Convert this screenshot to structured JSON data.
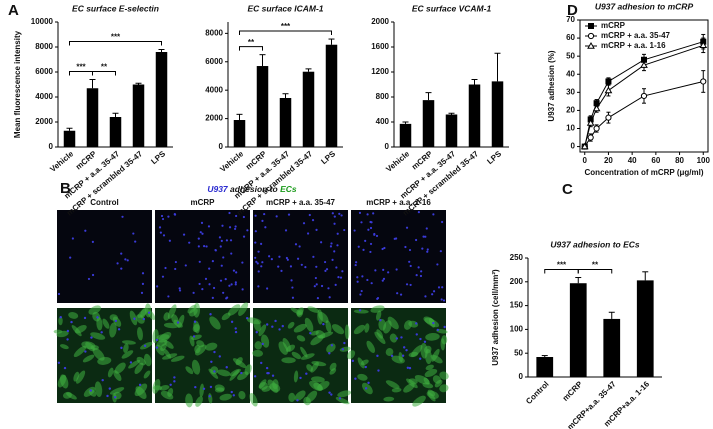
{
  "panel_labels": [
    "A",
    "B",
    "C",
    "D"
  ],
  "image_panel": {
    "title_parts": [
      "U937",
      "adhesion to",
      "ECs"
    ],
    "columns": [
      "Control",
      "mCRP",
      "mCRP + a.a. 35-47",
      "mCRP + a.a. 1-16"
    ]
  },
  "chart_data": [
    {
      "type": "bar",
      "title": "EC surface E-selectin",
      "y_label": "Mean fluorescence intensity",
      "categories": [
        "Vehicle",
        "mCRP",
        "mCRP + a.a. 35-47",
        "mCRP + scrambled 35-47",
        "LPS"
      ],
      "values": [
        1300,
        4700,
        2400,
        5000,
        7600
      ],
      "errors": [
        200,
        700,
        300,
        100,
        200
      ],
      "color": "#000000",
      "ylim": [
        0,
        10000
      ],
      "yticks": [
        0,
        2000,
        4000,
        6000,
        8000,
        10000
      ],
      "annotations": [
        {
          "text": "***",
          "pair": [
            0,
            1
          ]
        },
        {
          "text": "**",
          "pair": [
            1,
            2
          ]
        },
        {
          "text": "***",
          "pair": [
            0,
            4
          ]
        }
      ]
    },
    {
      "type": "bar",
      "title": "EC surface ICAM-1",
      "categories": [
        "Vehicle",
        "mCRP",
        "mCRP + a.a. 35-47",
        "mCRP + scrambled 35-47",
        "LPS"
      ],
      "values": [
        1900,
        5700,
        3450,
        5300,
        7200
      ],
      "errors": [
        400,
        800,
        300,
        200,
        400
      ],
      "color": "#000000",
      "ylim": [
        0,
        8800
      ],
      "yticks": [
        0,
        2000,
        4000,
        6000,
        8000
      ],
      "annotations": [
        {
          "text": "**",
          "pair": [
            0,
            1
          ]
        },
        {
          "text": "***",
          "pair": [
            0,
            4
          ]
        }
      ]
    },
    {
      "type": "bar",
      "title": "EC surface VCAM-1",
      "categories": [
        "Vehicle",
        "mCRP",
        "mCRP + a.a. 35-47",
        "mCRP + scrambled 35-47",
        "LPS"
      ],
      "values": [
        370,
        750,
        520,
        1000,
        1050
      ],
      "errors": [
        30,
        120,
        20,
        80,
        450
      ],
      "color": "#000000",
      "ylim": [
        0,
        2000
      ],
      "yticks": [
        0,
        400,
        800,
        1200,
        1600,
        2000
      ]
    },
    {
      "type": "line",
      "title": "U937 adhesion to mCRP",
      "x_label": "Concentration of mCRP (μg/ml)",
      "y_label": "U937 adhesion (%)",
      "x": [
        0,
        5,
        10,
        20,
        50,
        100
      ],
      "xlim": [
        -4,
        104
      ],
      "xticks": [
        0,
        20,
        40,
        60,
        80,
        100
      ],
      "ylim": [
        -3,
        70
      ],
      "yticks": [
        0,
        10,
        20,
        30,
        40,
        50,
        60,
        70
      ],
      "series": [
        {
          "name": "mCRP",
          "color": "#000000",
          "marker": "square-filled",
          "values": [
            0,
            15,
            24,
            36,
            48,
            58
          ],
          "errors": [
            1,
            2,
            2,
            2,
            3,
            4
          ]
        },
        {
          "name": "mCRP + a.a. 35-47",
          "color": "#000000",
          "marker": "circle-open",
          "values": [
            0,
            5,
            10,
            16,
            28,
            36
          ],
          "errors": [
            1,
            2,
            2,
            3,
            4,
            6
          ]
        },
        {
          "name": "mCRP + a.a. 1-16",
          "color": "#000000",
          "marker": "triangle-open",
          "values": [
            0,
            13,
            21,
            31,
            45,
            56
          ],
          "errors": [
            1,
            2,
            2,
            3,
            3,
            4
          ]
        }
      ]
    },
    {
      "type": "bar",
      "title": "U937 adhesion to ECs",
      "y_label": "U937 adhesion (cell/mm²)",
      "categories": [
        "Control",
        "mCRP",
        "mCRP+a.a. 35-47",
        "mCRP+a.a. 1-16"
      ],
      "values": [
        42,
        197,
        122,
        203
      ],
      "errors": [
        3,
        12,
        14,
        18
      ],
      "color": "#000000",
      "ylim": [
        0,
        250
      ],
      "yticks": [
        0,
        50,
        100,
        150,
        200,
        250
      ],
      "annotations": [
        {
          "text": "***",
          "pair": [
            0,
            1
          ]
        },
        {
          "text": "**",
          "pair": [
            1,
            2
          ]
        }
      ]
    }
  ]
}
